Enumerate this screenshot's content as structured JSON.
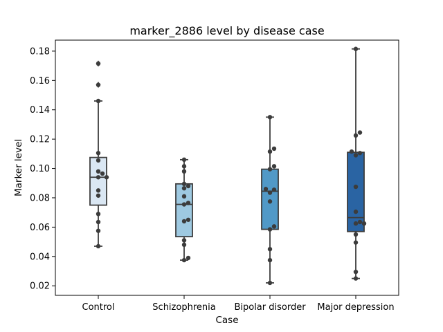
{
  "chart_data": {
    "type": "box",
    "title": "marker_2886 level by disease case",
    "xlabel": "Case",
    "ylabel": "Marker level",
    "ylim": [
      0.0135,
      0.1875
    ],
    "yticks": [
      0.02,
      0.04,
      0.06,
      0.08,
      0.1,
      0.12,
      0.14,
      0.16,
      0.18
    ],
    "ytick_labels": [
      "0.02",
      "0.04",
      "0.06",
      "0.08",
      "0.10",
      "0.12",
      "0.14",
      "0.16",
      "0.18"
    ],
    "categories": [
      "Control",
      "Schizophrenia",
      "Bipolar disorder",
      "Major depression"
    ],
    "colors": [
      "#dae7f3",
      "#9ec9e1",
      "#5199c7",
      "#2a64a3"
    ],
    "grid": false,
    "legend": "none",
    "boxes": [
      {
        "category": "Control",
        "q1": 0.075,
        "median": 0.094,
        "q3": 0.1075,
        "whisker_low": 0.047,
        "whisker_high": 0.146,
        "outliers": [
          0.157,
          0.1715
        ]
      },
      {
        "category": "Schizophrenia",
        "q1": 0.0535,
        "median": 0.0755,
        "q3": 0.0895,
        "whisker_low": 0.0375,
        "whisker_high": 0.106,
        "outliers": []
      },
      {
        "category": "Bipolar disorder",
        "q1": 0.0585,
        "median": 0.0845,
        "q3": 0.0995,
        "whisker_low": 0.022,
        "whisker_high": 0.135,
        "outliers": []
      },
      {
        "category": "Major depression",
        "q1": 0.057,
        "median": 0.0665,
        "q3": 0.111,
        "whisker_low": 0.025,
        "whisker_high": 0.1815,
        "outliers": []
      }
    ],
    "points": [
      {
        "category": "Control",
        "values": [
          0.047,
          0.0575,
          0.0635,
          0.069,
          0.0815,
          0.085,
          0.094,
          0.094,
          0.0965,
          0.098,
          0.1055,
          0.1105,
          0.146,
          0.157,
          0.1715
        ]
      },
      {
        "category": "Schizophrenia",
        "values": [
          0.0375,
          0.039,
          0.048,
          0.051,
          0.064,
          0.065,
          0.0755,
          0.0765,
          0.081,
          0.0865,
          0.088,
          0.0895,
          0.098,
          0.1015,
          0.106
        ]
      },
      {
        "category": "Bipolar disorder",
        "values": [
          0.022,
          0.0375,
          0.045,
          0.0585,
          0.0605,
          0.0775,
          0.0835,
          0.0855,
          0.086,
          0.0995,
          0.1015,
          0.1115,
          0.1135,
          0.135
        ]
      },
      {
        "category": "Major depression",
        "values": [
          0.025,
          0.0295,
          0.0495,
          0.055,
          0.0625,
          0.0625,
          0.0635,
          0.0705,
          0.0875,
          0.109,
          0.1105,
          0.1115,
          0.1225,
          0.1245,
          0.1815
        ]
      }
    ]
  }
}
